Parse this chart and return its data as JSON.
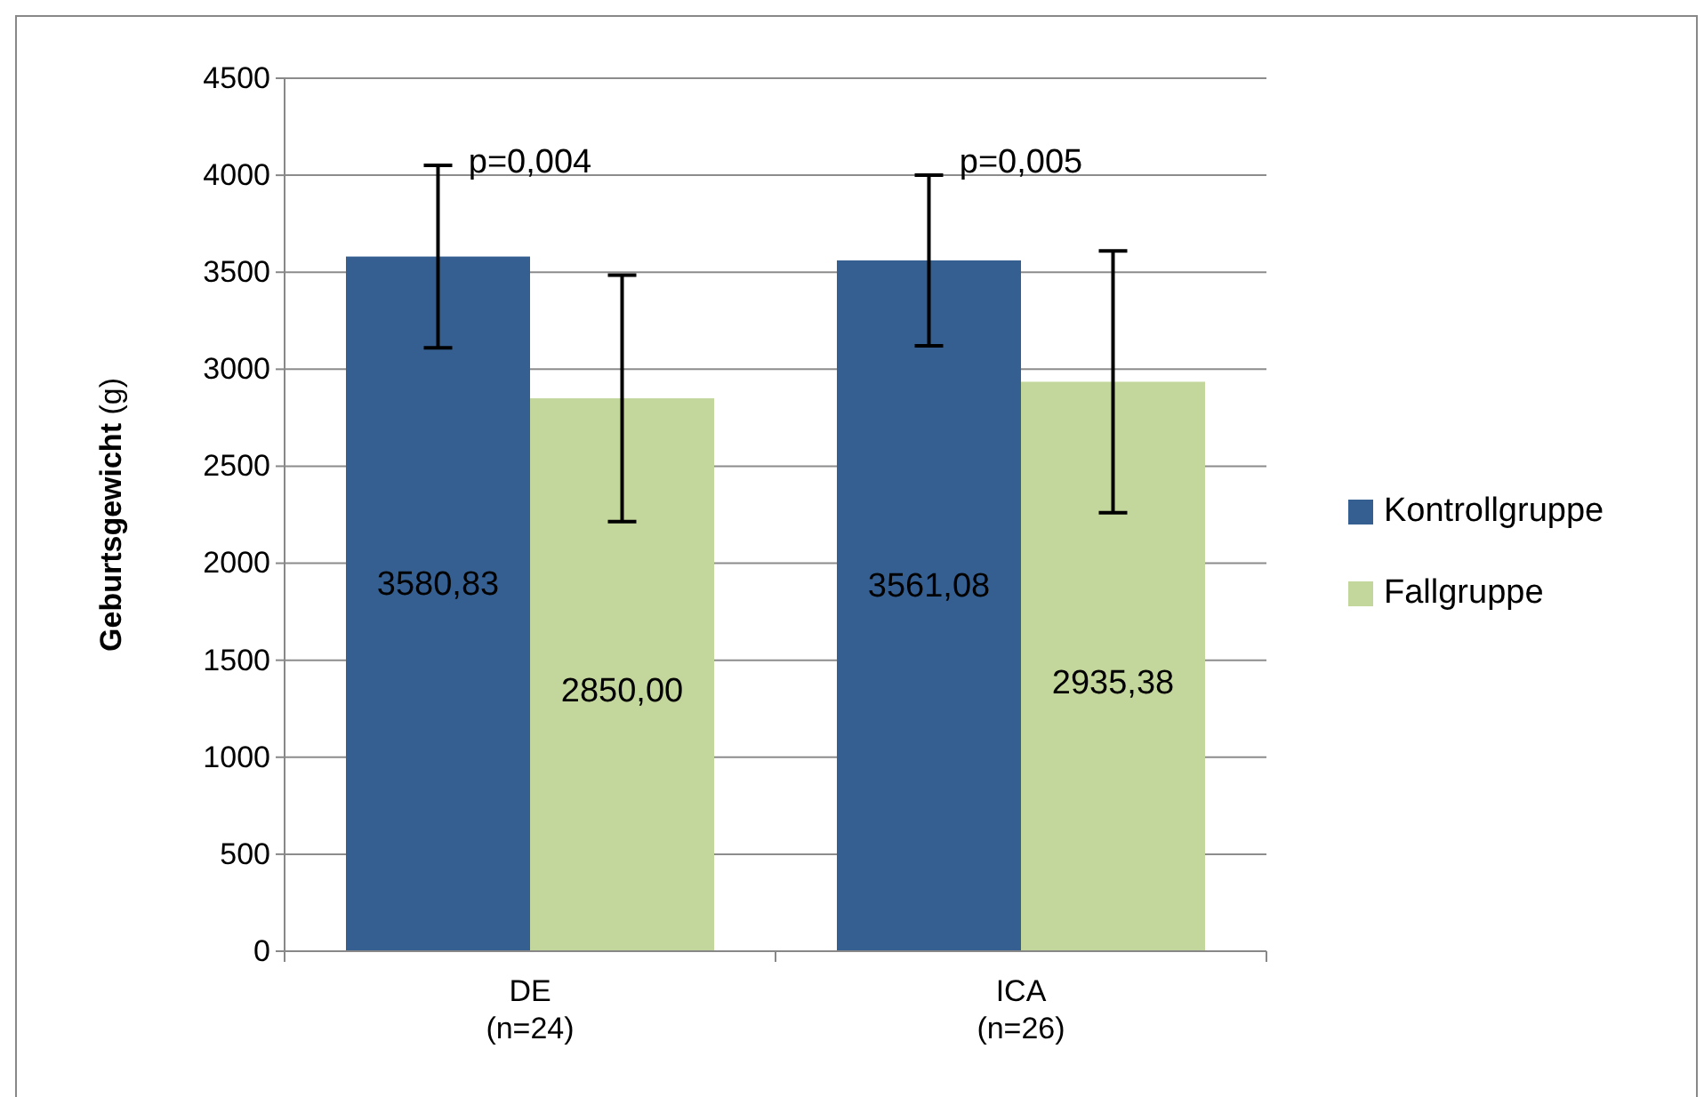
{
  "chart_data": {
    "type": "bar",
    "ylabel": "Geburtsgewicht (g)",
    "categories": [
      "DE\n(n=24)",
      "ICA\n(n=26)"
    ],
    "series": [
      {
        "name": "Kontrollgruppe",
        "color": "#355f91",
        "values": [
          3580.83,
          3561.08
        ],
        "value_labels": [
          "3580,83",
          "3561,08"
        ],
        "errors": [
          470,
          440
        ]
      },
      {
        "name": "Fallgruppe",
        "color": "#c3d69b",
        "values": [
          2850.0,
          2935.38
        ],
        "value_labels": [
          "2850,00",
          "2935,38"
        ],
        "errors": [
          635,
          675
        ]
      }
    ],
    "ylim": [
      0,
      4500
    ],
    "yticks": [
      0,
      500,
      1000,
      1500,
      2000,
      2500,
      3000,
      3500,
      4000,
      4500
    ],
    "grid": "y",
    "legend": "right",
    "annotations": [
      "p=0,004",
      "p=0,005"
    ]
  }
}
